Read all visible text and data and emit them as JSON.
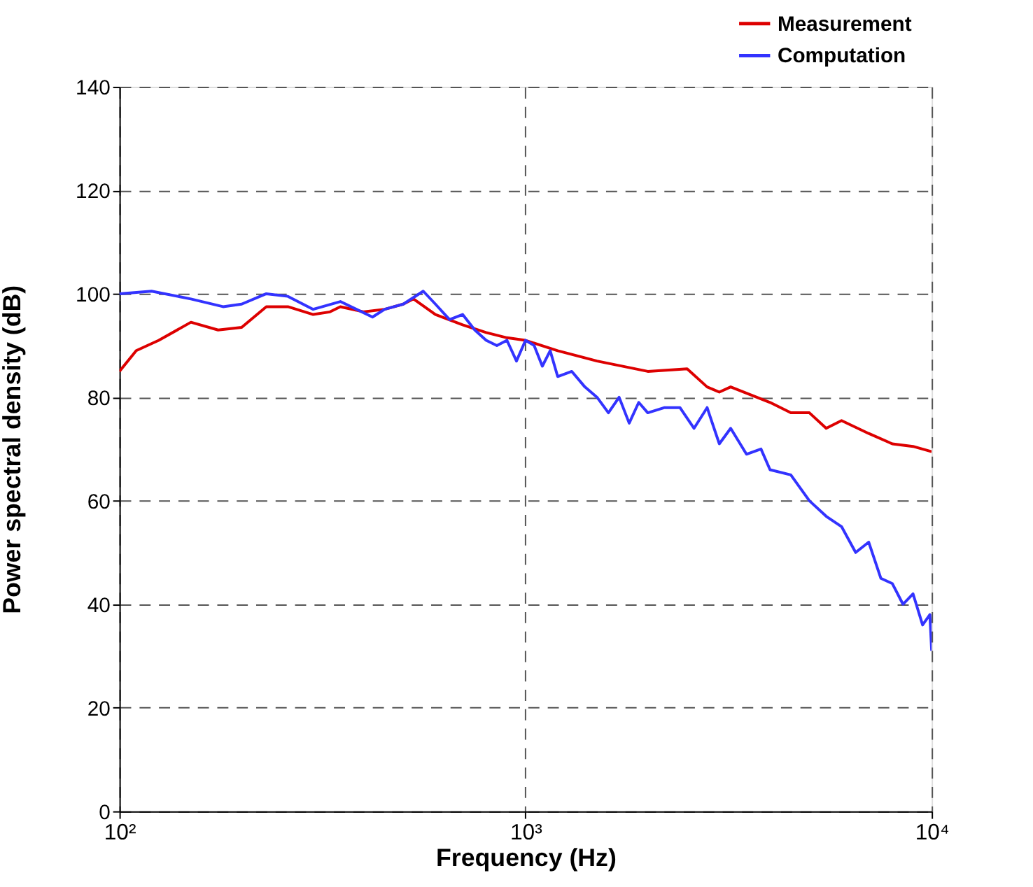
{
  "chart_data": {
    "type": "line",
    "xlabel": "Frequency (Hz)",
    "ylabel": "Power spectral density (dB)",
    "log": "x",
    "xlim": [
      100,
      10000
    ],
    "xticks": [
      {
        "value": 100,
        "label": "10²"
      },
      {
        "value": 1000,
        "label": "10³"
      },
      {
        "value": 10000,
        "label": "10⁴"
      }
    ],
    "ylim": [
      0,
      140
    ],
    "yticks": [
      0,
      20,
      40,
      60,
      80,
      100,
      120,
      140
    ],
    "grid": true,
    "legend": "top right",
    "line_style": "solid",
    "marker": "none",
    "series": [
      {
        "name": "Measurement",
        "color": "#dd0000",
        "x": [
          100,
          110,
          125,
          150,
          175,
          200,
          230,
          260,
          300,
          330,
          350,
          400,
          450,
          500,
          530,
          600,
          700,
          800,
          900,
          1000,
          1200,
          1500,
          2000,
          2500,
          2800,
          3000,
          3200,
          4000,
          4500,
          5000,
          5500,
          6000,
          7000,
          8000,
          9000,
          10000
        ],
        "values": [
          85,
          89,
          91,
          94.5,
          93,
          93.5,
          97.5,
          97.5,
          96,
          96.5,
          97.5,
          96.5,
          97,
          98,
          99,
          96,
          94,
          92.5,
          91.5,
          91,
          89,
          87,
          85,
          85.5,
          82,
          81,
          82,
          79,
          77,
          77,
          74,
          75.5,
          73,
          71,
          70.5,
          69.5
        ]
      },
      {
        "name": "Computation",
        "color": "#3333ff",
        "x": [
          100,
          120,
          150,
          180,
          200,
          230,
          260,
          300,
          350,
          420,
          450,
          500,
          560,
          600,
          650,
          700,
          750,
          800,
          850,
          900,
          950,
          1000,
          1050,
          1100,
          1150,
          1200,
          1300,
          1400,
          1500,
          1600,
          1700,
          1800,
          1900,
          2000,
          2200,
          2400,
          2600,
          2800,
          3000,
          3200,
          3500,
          3800,
          4000,
          4500,
          5000,
          5500,
          6000,
          6500,
          7000,
          7500,
          8000,
          8500,
          9000,
          9500,
          9900,
          10000
        ],
        "values": [
          100,
          100.5,
          99,
          97.5,
          98,
          100,
          99.5,
          97,
          98.5,
          95.5,
          97,
          98,
          100.5,
          98,
          95,
          96,
          93,
          91,
          90,
          91,
          87,
          91,
          90,
          86,
          89,
          84,
          85,
          82,
          80,
          77,
          80,
          75,
          79,
          77,
          78,
          78,
          74,
          78,
          71,
          74,
          69,
          70,
          66,
          65,
          60,
          57,
          55,
          50,
          52,
          45,
          44,
          40,
          42,
          36,
          38,
          31
        ]
      }
    ]
  }
}
